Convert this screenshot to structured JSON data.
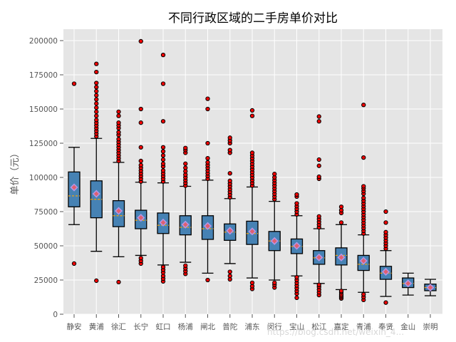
{
  "chart_data": {
    "type": "box",
    "title": "不同行政区域的二手房单价对比",
    "xlabel": "",
    "ylabel": "单价（元）",
    "ylim": [
      0,
      210000
    ],
    "yticks": [
      0,
      25000,
      50000,
      75000,
      100000,
      125000,
      150000,
      175000,
      200000
    ],
    "grid": true,
    "categories": [
      "静安",
      "黄浦",
      "徐汇",
      "长宁",
      "虹口",
      "杨浦",
      "闸北",
      "普陀",
      "浦东",
      "闵行",
      "宝山",
      "松江",
      "嘉定",
      "青浦",
      "奉贤",
      "金山",
      "崇明"
    ],
    "boxes": [
      {
        "name": "静安",
        "whislo": 65500,
        "q1": 78500,
        "med": 86500,
        "mean": 92700,
        "q3": 104000,
        "whishi": 122000,
        "fliers": [
          37000,
          168500
        ]
      },
      {
        "name": "黄浦",
        "whislo": 46000,
        "q1": 70500,
        "med": 84000,
        "mean": 88000,
        "q3": 97500,
        "whishi": 128500,
        "fliers": [
          24500,
          130000,
          132000,
          134000,
          136000,
          138000,
          140000,
          142000,
          145000,
          148000,
          151000,
          154000,
          157000,
          160000,
          163000,
          166000,
          169000,
          177000,
          183000
        ]
      },
      {
        "name": "徐汇",
        "whislo": 42000,
        "q1": 64000,
        "med": 72000,
        "mean": 75500,
        "q3": 83000,
        "whishi": 111000,
        "fliers": [
          23500,
          112000,
          114000,
          116000,
          118000,
          120000,
          122000,
          124000,
          126000,
          128000,
          131000,
          133000,
          136000,
          138000,
          140000,
          145000,
          148000
        ]
      },
      {
        "name": "长宁",
        "whislo": 43000,
        "q1": 62500,
        "med": 68700,
        "mean": 70500,
        "q3": 76000,
        "whishi": 96500,
        "fliers": [
          37000,
          39000,
          41000,
          97000,
          99000,
          101000,
          103000,
          105000,
          107000,
          109000,
          112000,
          122000,
          140000,
          150000,
          199500
        ]
      },
      {
        "name": "虹口",
        "whislo": 36000,
        "q1": 59000,
        "med": 65000,
        "mean": 67000,
        "q3": 74000,
        "whishi": 96000,
        "fliers": [
          24000,
          26000,
          28000,
          30500,
          32500,
          34500,
          97000,
          99000,
          101000,
          103000,
          105000,
          108000,
          110000,
          113000,
          116000,
          119000,
          122000,
          141000,
          168500,
          189500
        ]
      },
      {
        "name": "杨浦",
        "whislo": 38000,
        "q1": 58000,
        "med": 63500,
        "mean": 65500,
        "q3": 72000,
        "whishi": 93500,
        "fliers": [
          29500,
          31500,
          33500,
          35500,
          94000,
          96000,
          98000,
          100000,
          102000,
          104500,
          107000,
          110000,
          118000,
          120000,
          121500
        ]
      },
      {
        "name": "闸北",
        "whislo": 30000,
        "q1": 54700,
        "med": 62500,
        "mean": 64500,
        "q3": 72000,
        "whishi": 98000,
        "fliers": [
          25000,
          99000,
          101000,
          103000,
          105000,
          107000,
          109000,
          111000,
          114000,
          125000,
          150000,
          157500
        ]
      },
      {
        "name": "普陀",
        "whislo": 37000,
        "q1": 54000,
        "med": 60000,
        "mean": 61000,
        "q3": 66000,
        "whishi": 84500,
        "fliers": [
          25500,
          28000,
          31000,
          85500,
          87500,
          89500,
          91500,
          93500,
          95500,
          97500,
          103000,
          118000,
          120000,
          125000,
          127000,
          129000
        ]
      },
      {
        "name": "浦东",
        "whislo": 26500,
        "q1": 51000,
        "med": 59000,
        "mean": 60500,
        "q3": 68000,
        "whishi": 93000,
        "fliers": [
          18500,
          20500,
          23000,
          94000,
          96000,
          98000,
          100000,
          102000,
          104000,
          106000,
          108000,
          110000,
          112000,
          114000,
          116000,
          118000,
          145000,
          149000
        ]
      },
      {
        "name": "闵行",
        "whislo": 25000,
        "q1": 46500,
        "med": 53500,
        "mean": 53500,
        "q3": 60500,
        "whishi": 82500,
        "fliers": [
          19500,
          21500,
          23000,
          84000,
          86000,
          88000,
          90000,
          92000,
          94000,
          96000,
          98000,
          100000,
          102500
        ]
      },
      {
        "name": "宝山",
        "whislo": 28000,
        "q1": 44300,
        "med": 49500,
        "mean": 50000,
        "q3": 55000,
        "whishi": 72000,
        "fliers": [
          12000,
          15000,
          17000,
          19000,
          21000,
          23000,
          25000,
          27000,
          73000,
          75000,
          77000,
          79000,
          81000,
          86000,
          87500
        ]
      },
      {
        "name": "松江",
        "whislo": 22500,
        "q1": 36500,
        "med": 41200,
        "mean": 41500,
        "q3": 46500,
        "whishi": 62500,
        "fliers": [
          14000,
          16000,
          18000,
          20000,
          21500,
          63500,
          65500,
          67500,
          69500,
          71500,
          99000,
          100500,
          108500,
          113000,
          141000,
          144500
        ]
      },
      {
        "name": "嘉定",
        "whislo": 18000,
        "q1": 36000,
        "med": 43000,
        "mean": 41500,
        "q3": 48500,
        "whishi": 65500,
        "fliers": [
          11500,
          12500,
          13500,
          14500,
          16000,
          17000,
          67000,
          74000,
          76000,
          78500
        ]
      },
      {
        "name": "青浦",
        "whislo": 16000,
        "q1": 32000,
        "med": 36500,
        "mean": 39000,
        "q3": 43000,
        "whishi": 58000,
        "fliers": [
          10500,
          12500,
          14500,
          59000,
          61000,
          63000,
          65000,
          67000,
          69000,
          71000,
          73000,
          75000,
          77000,
          79000,
          81000,
          83000,
          85000,
          88000,
          90000,
          92000,
          93500,
          114500,
          153000
        ]
      },
      {
        "name": "奉贤",
        "whislo": 13000,
        "q1": 25500,
        "med": 30000,
        "mean": 31000,
        "q3": 35000,
        "whishi": 46500,
        "fliers": [
          8500,
          48000,
          50000,
          52000,
          54000,
          56000,
          58000,
          60000,
          67000,
          75000
        ]
      },
      {
        "name": "金山",
        "whislo": 14000,
        "q1": 19500,
        "med": 22500,
        "mean": 22500,
        "q3": 26500,
        "whishi": 30000,
        "fliers": []
      },
      {
        "name": "崇明",
        "whislo": 13500,
        "q1": 17200,
        "med": 19500,
        "mean": 19500,
        "q3": 22000,
        "whishi": 25500,
        "fliers": []
      }
    ],
    "colors": {
      "background": "#e5e5e5",
      "grid": "#ffffff",
      "box_fill": "#4682b4",
      "box_edge": "#000000",
      "median": "#ffa500",
      "mean_marker": "#e06070",
      "mean_marker_edge": "#b497e8",
      "flier_fill": "#ff0000",
      "flier_edge": "#000000"
    }
  },
  "watermark": "https://blog.csdn.net/weixin_4..."
}
